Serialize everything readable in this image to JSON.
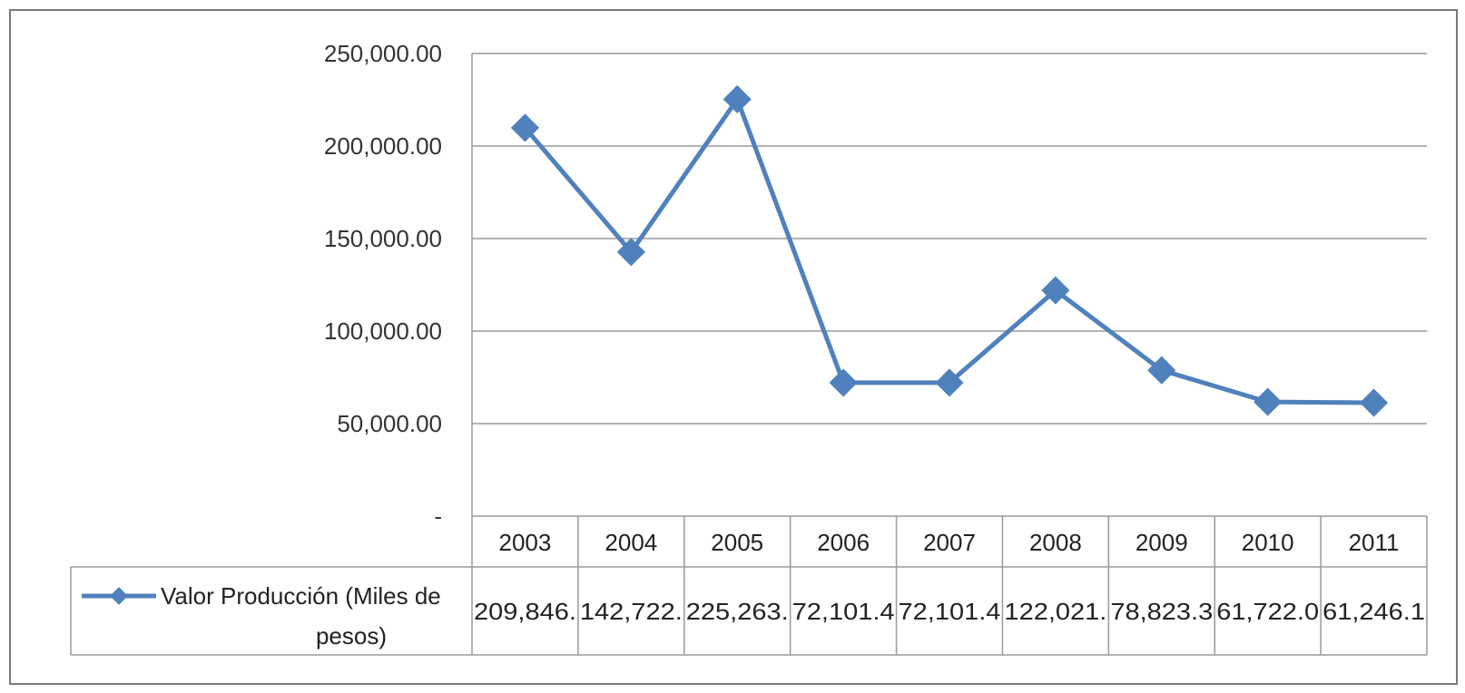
{
  "chart_data": {
    "type": "line",
    "categories": [
      "2003",
      "2004",
      "2005",
      "2006",
      "2007",
      "2008",
      "2009",
      "2010",
      "2011"
    ],
    "series": [
      {
        "name": "Valor Producción (Miles de pesos)",
        "name_lines": [
          "Valor Producción (Miles de",
          "pesos)"
        ],
        "values": [
          209846.1,
          142722.1,
          225263.1,
          72101.4,
          72101.4,
          122021.1,
          78823.3,
          61722.0,
          61246.1
        ],
        "table_labels": [
          "209,846.",
          "142,722.",
          "225,263.",
          "72,101.4",
          "72,101.4",
          "122,021.",
          "78,823.3",
          "61,722.0",
          "61,246.1"
        ],
        "color": "#4f81bd"
      }
    ],
    "yticks": [
      {
        "value": 0,
        "label": "-"
      },
      {
        "value": 50000,
        "label": "50,000.00"
      },
      {
        "value": 100000,
        "label": "100,000.00"
      },
      {
        "value": 150000,
        "label": "150,000.00"
      },
      {
        "value": 200000,
        "label": "200,000.00"
      },
      {
        "value": 250000,
        "label": "250,000.00"
      }
    ],
    "ylim": [
      0,
      250000
    ],
    "grid": true,
    "legend": "data-table",
    "title": "",
    "xlabel": "",
    "ylabel": ""
  }
}
